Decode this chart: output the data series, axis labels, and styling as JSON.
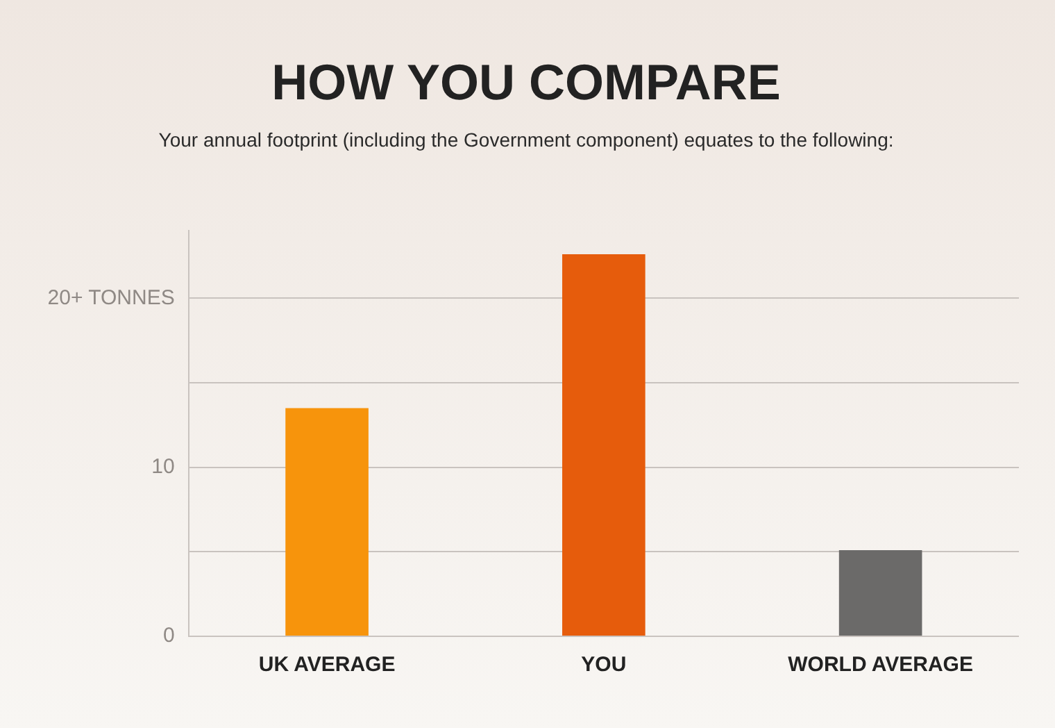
{
  "chart_data": {
    "type": "bar",
    "title": "HOW YOU COMPARE",
    "subtitle": "Your annual footprint (including the Government component) equates to the following:",
    "categories": [
      "UK AVERAGE",
      "YOU",
      "WORLD AVERAGE"
    ],
    "values": [
      13.5,
      22.6,
      5.1
    ],
    "colors": [
      "#f7940c",
      "#e65c0c",
      "#6b6a69"
    ],
    "ylim": [
      0,
      24
    ],
    "yticks": [
      0,
      {
        "value": 5,
        "label": null
      },
      10,
      {
        "value": 15,
        "label": null
      },
      {
        "value": 20,
        "label": "20+ TONNES"
      }
    ],
    "grid": "y"
  }
}
